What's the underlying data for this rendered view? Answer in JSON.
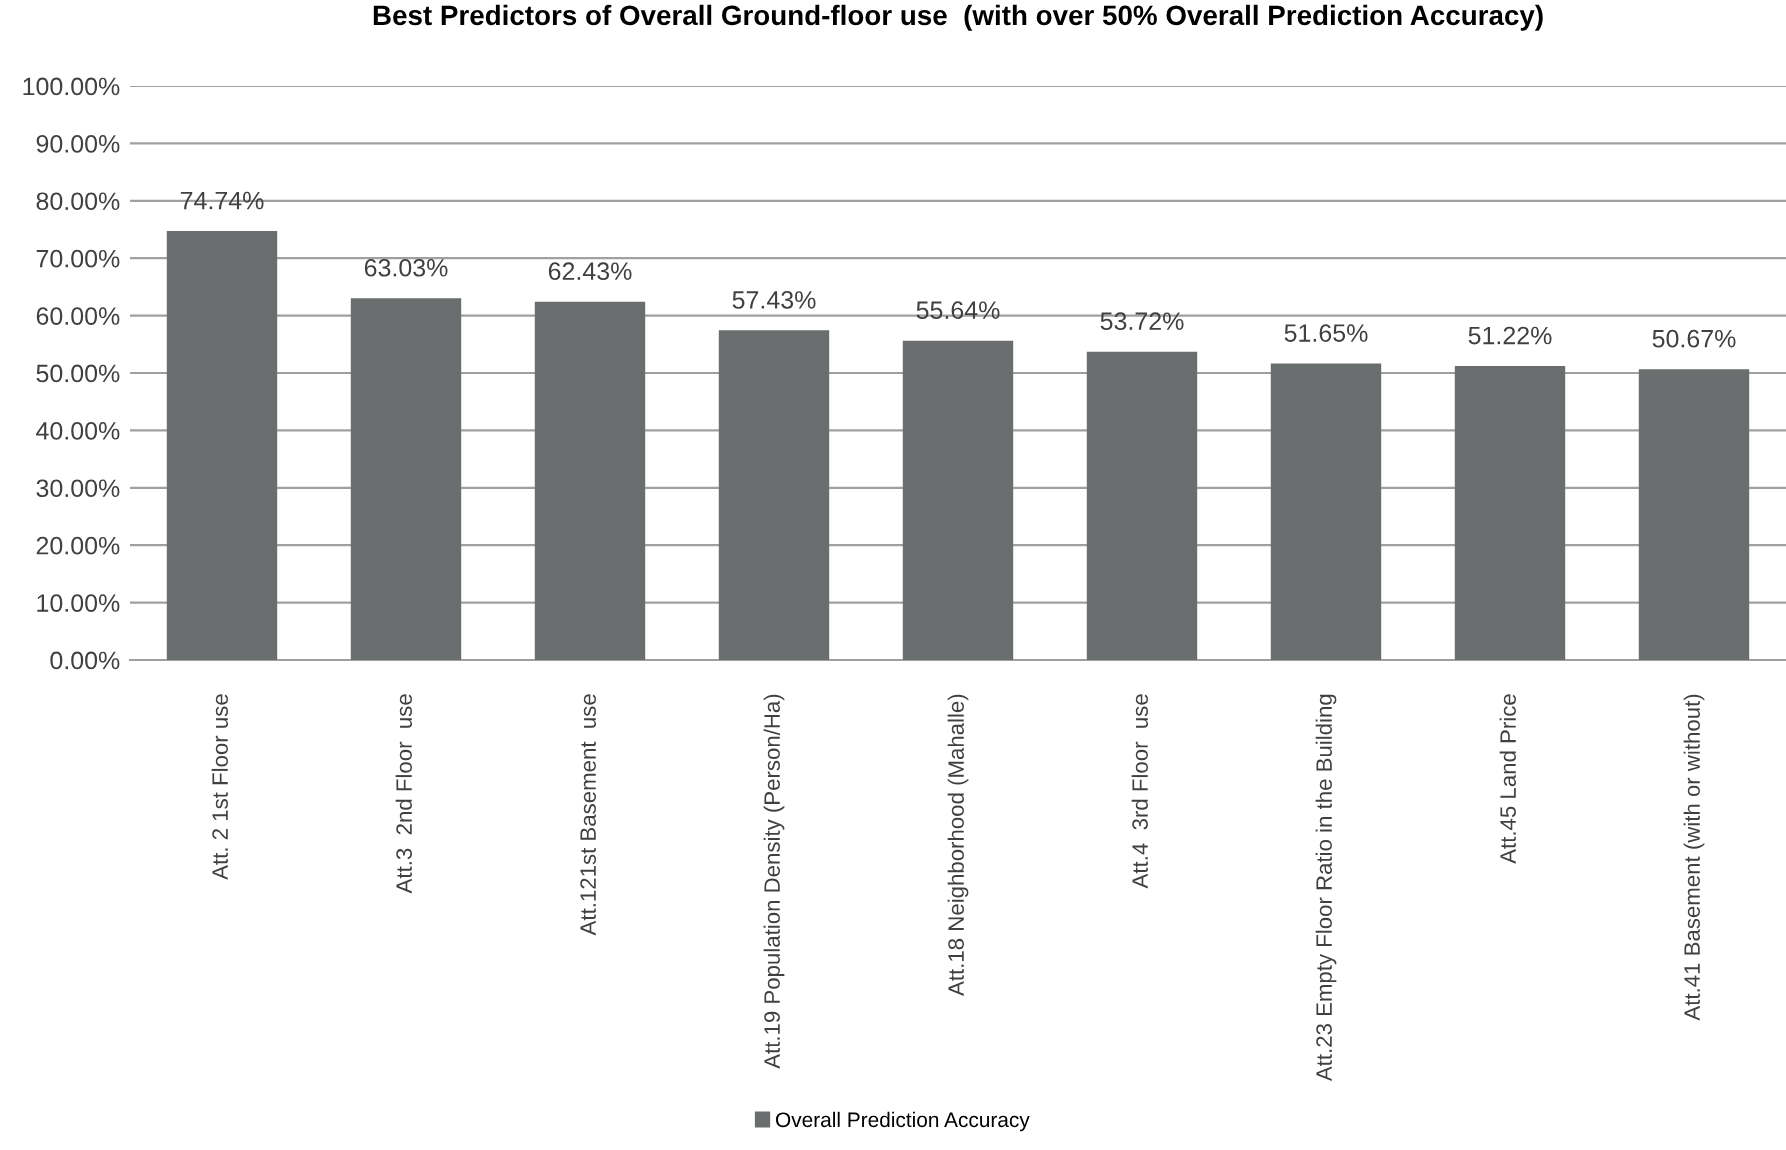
{
  "chart_data": {
    "type": "bar",
    "title": "Best Predictors of Overall Ground-floor use  (with over 50% Overall Prediction Accuracy)",
    "categories": [
      "Att. 2 1st Floor use",
      "Att.3  2nd Floor  use",
      "Att.121st Basement  use",
      "Att.19 Population Density (Person/Ha)",
      "Att.18 Neighborhood (Mahalle)",
      "Att.4  3rd Floor  use",
      "Att.23 Empty Floor Ratio in the Building",
      "Att.45 Land Price",
      "Att.41 Basement (with or without)"
    ],
    "series": [
      {
        "name": "Overall Prediction Accuracy",
        "color": "#6b6e6e",
        "values": [
          74.74,
          63.03,
          62.43,
          57.43,
          55.64,
          53.72,
          51.65,
          51.22,
          50.67
        ],
        "value_labels": [
          "74.74%",
          "63.03%",
          "62.43%",
          "57.43%",
          "55.64%",
          "53.72%",
          "51.65%",
          "51.22%",
          "50.67%"
        ]
      }
    ],
    "ylim": [
      0,
      100
    ],
    "yticks": [
      {
        "value": 0,
        "label": "0.00%"
      },
      {
        "value": 10,
        "label": "10.00%"
      },
      {
        "value": 20,
        "label": "20.00%"
      },
      {
        "value": 30,
        "label": "30.00%"
      },
      {
        "value": 40,
        "label": "40.00%"
      },
      {
        "value": 50,
        "label": "50.00%"
      },
      {
        "value": 60,
        "label": "60.00%"
      },
      {
        "value": 70,
        "label": "70.00%"
      },
      {
        "value": 80,
        "label": "80.00%"
      },
      {
        "value": 90,
        "label": "90.00%"
      },
      {
        "value": 100,
        "label": "100.00%"
      }
    ],
    "grid": "y",
    "legend": "bottom"
  }
}
